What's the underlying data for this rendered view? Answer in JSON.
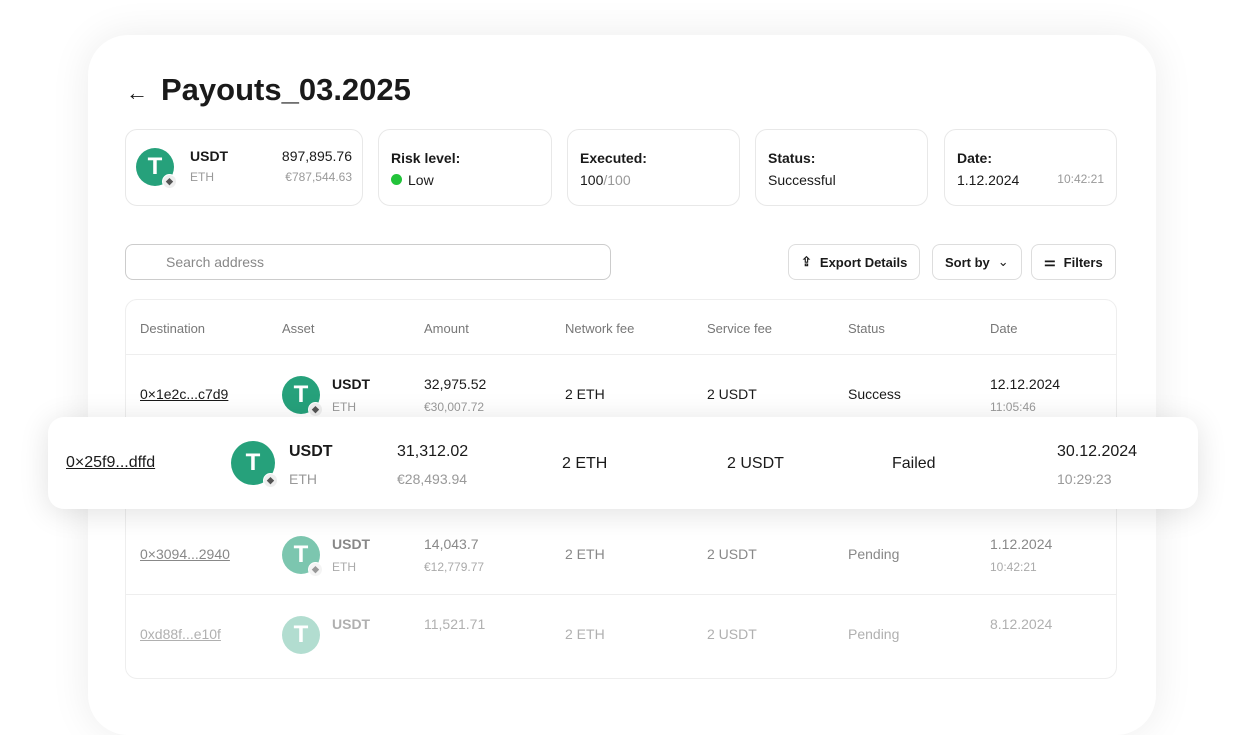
{
  "header": {
    "title": "Payouts_03.2025",
    "back_icon": "arrow-left-icon"
  },
  "summary": {
    "asset": {
      "symbol": "USDT",
      "network": "ETH",
      "amount": "897,895.76",
      "fiat": "€787,544.63"
    },
    "risk": {
      "label": "Risk level:",
      "value": "Low",
      "color": "#22c33a"
    },
    "executed": {
      "label": "Executed:",
      "done": "100",
      "total": "/100"
    },
    "status": {
      "label": "Status:",
      "value": "Successful"
    },
    "date": {
      "label": "Date:",
      "date": "1.12.2024",
      "time": "10:42:21"
    }
  },
  "toolbar": {
    "search_placeholder": "Search address",
    "export": "Export Details",
    "sort": "Sort by",
    "filters": "Filters"
  },
  "table": {
    "headers": [
      "Destination",
      "Asset",
      "Amount",
      "Network fee",
      "Service fee",
      "Status",
      "Date"
    ],
    "rows": [
      {
        "dest": "0×1e2c...c7d9",
        "asset": "USDT",
        "network": "ETH",
        "amount": "32,975.52",
        "fiat": "€30,007.72",
        "netfee": "2 ETH",
        "svcfee": "2 USDT",
        "status": "Success",
        "date": "12.12.2024",
        "time": "11:05:46"
      },
      {
        "dest": "0×25f9...dffd",
        "asset": "USDT",
        "network": "ETH",
        "amount": "31,312.02",
        "fiat": "€28,493.94",
        "netfee": "2 ETH",
        "svcfee": "2 USDT",
        "status": "Failed",
        "date": "30.12.2024",
        "time": "10:29:23"
      },
      {
        "dest": "0×3094...2940",
        "asset": "USDT",
        "network": "ETH",
        "amount": "14,043.7",
        "fiat": "€12,779.77",
        "netfee": "2 ETH",
        "svcfee": "2 USDT",
        "status": "Pending",
        "date": "1.12.2024",
        "time": "10:42:21"
      },
      {
        "dest": "0xd88f...e10f",
        "asset": "USDT",
        "amount": "11,521.71",
        "netfee": "2 ETH",
        "svcfee": "2 USDT",
        "status": "Pending",
        "date": "8.12.2024"
      }
    ]
  }
}
